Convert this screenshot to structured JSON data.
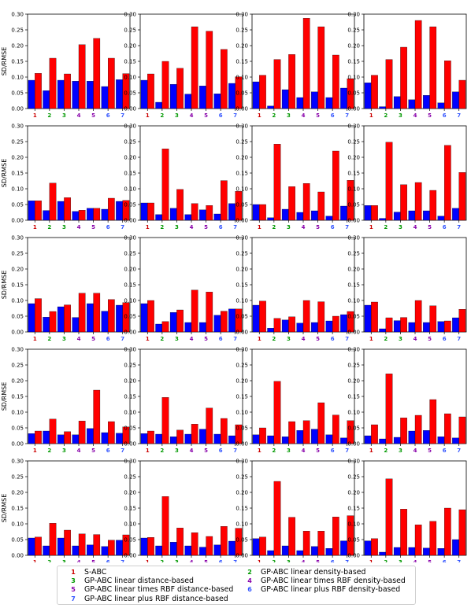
{
  "colors": {
    "red_bar": "#ff0000",
    "blue_bar": "#0000ff",
    "tick_colors": [
      "#cc0000",
      "#009900",
      "#009900",
      "#8800aa",
      "#8800aa",
      "#3355ff",
      "#3355ff"
    ]
  },
  "chart_data": {
    "type": "bar",
    "layout": "grid of 5 rows x 4 columns, grouped bars (blue = SD, red = RMSE)",
    "ylabel": "SD/RMSE",
    "ylim": [
      0,
      0.3
    ],
    "yticks": [
      "0.00",
      "0.05",
      "0.10",
      "0.15",
      "0.20",
      "0.25",
      "0.30"
    ],
    "categories": [
      "1",
      "2",
      "3",
      "4",
      "5",
      "6",
      "7"
    ],
    "grid": false,
    "panels": [
      {
        "row": 1,
        "col": 1,
        "blue": [
          0.09,
          0.057,
          0.09,
          0.087,
          0.087,
          0.07,
          0.092
        ],
        "red": [
          0.112,
          0.16,
          0.11,
          0.203,
          0.223,
          0.16,
          0.111
        ]
      },
      {
        "row": 1,
        "col": 2,
        "blue": [
          0.09,
          0.02,
          0.077,
          0.046,
          0.072,
          0.047,
          0.08
        ],
        "red": [
          0.11,
          0.15,
          0.128,
          0.26,
          0.246,
          0.188,
          0.101
        ]
      },
      {
        "row": 1,
        "col": 3,
        "blue": [
          0.085,
          0.008,
          0.06,
          0.035,
          0.053,
          0.035,
          0.065
        ],
        "red": [
          0.106,
          0.156,
          0.172,
          0.287,
          0.26,
          0.17,
          0.095
        ]
      },
      {
        "row": 1,
        "col": 4,
        "blue": [
          0.082,
          0.006,
          0.038,
          0.028,
          0.042,
          0.018,
          0.053
        ],
        "red": [
          0.106,
          0.156,
          0.195,
          0.28,
          0.26,
          0.152,
          0.09
        ]
      },
      {
        "row": 2,
        "col": 1,
        "blue": [
          0.062,
          0.031,
          0.06,
          0.028,
          0.038,
          0.035,
          0.06
        ],
        "red": [
          0.062,
          0.118,
          0.072,
          0.032,
          0.038,
          0.07,
          0.063
        ]
      },
      {
        "row": 2,
        "col": 2,
        "blue": [
          0.055,
          0.018,
          0.038,
          0.018,
          0.033,
          0.02,
          0.053
        ],
        "red": [
          0.055,
          0.227,
          0.098,
          0.053,
          0.047,
          0.126,
          0.092
        ]
      },
      {
        "row": 2,
        "col": 3,
        "blue": [
          0.05,
          0.008,
          0.035,
          0.025,
          0.03,
          0.013,
          0.045
        ],
        "red": [
          0.05,
          0.242,
          0.107,
          0.117,
          0.09,
          0.22,
          0.127
        ]
      },
      {
        "row": 2,
        "col": 4,
        "blue": [
          0.047,
          0.006,
          0.026,
          0.03,
          0.03,
          0.013,
          0.038
        ],
        "red": [
          0.047,
          0.248,
          0.113,
          0.12,
          0.095,
          0.238,
          0.152
        ]
      },
      {
        "row": 3,
        "col": 1,
        "blue": [
          0.09,
          0.047,
          0.08,
          0.046,
          0.09,
          0.066,
          0.085
        ],
        "red": [
          0.106,
          0.065,
          0.086,
          0.123,
          0.123,
          0.103,
          0.093
        ]
      },
      {
        "row": 3,
        "col": 2,
        "blue": [
          0.09,
          0.025,
          0.062,
          0.03,
          0.03,
          0.053,
          0.073
        ],
        "red": [
          0.1,
          0.033,
          0.07,
          0.133,
          0.127,
          0.066,
          0.073
        ]
      },
      {
        "row": 3,
        "col": 3,
        "blue": [
          0.085,
          0.012,
          0.038,
          0.028,
          0.03,
          0.035,
          0.055
        ],
        "red": [
          0.098,
          0.043,
          0.048,
          0.1,
          0.096,
          0.05,
          0.065
        ]
      },
      {
        "row": 3,
        "col": 4,
        "blue": [
          0.085,
          0.01,
          0.036,
          0.03,
          0.03,
          0.033,
          0.045
        ],
        "red": [
          0.095,
          0.045,
          0.046,
          0.1,
          0.083,
          0.035,
          0.072
        ]
      },
      {
        "row": 4,
        "col": 1,
        "blue": [
          0.032,
          0.04,
          0.028,
          0.028,
          0.048,
          0.035,
          0.033
        ],
        "red": [
          0.04,
          0.078,
          0.038,
          0.072,
          0.17,
          0.07,
          0.053
        ]
      },
      {
        "row": 4,
        "col": 2,
        "blue": [
          0.032,
          0.03,
          0.022,
          0.03,
          0.046,
          0.03,
          0.025
        ],
        "red": [
          0.04,
          0.147,
          0.043,
          0.062,
          0.113,
          0.08,
          0.06
        ]
      },
      {
        "row": 4,
        "col": 3,
        "blue": [
          0.028,
          0.025,
          0.022,
          0.042,
          0.046,
          0.028,
          0.018
        ],
        "red": [
          0.05,
          0.198,
          0.07,
          0.073,
          0.13,
          0.091,
          0.073
        ]
      },
      {
        "row": 4,
        "col": 4,
        "blue": [
          0.025,
          0.015,
          0.02,
          0.04,
          0.042,
          0.022,
          0.018
        ],
        "red": [
          0.06,
          0.222,
          0.082,
          0.09,
          0.14,
          0.095,
          0.085
        ]
      },
      {
        "row": 5,
        "col": 1,
        "blue": [
          0.055,
          0.03,
          0.055,
          0.03,
          0.033,
          0.028,
          0.048
        ],
        "red": [
          0.058,
          0.102,
          0.08,
          0.068,
          0.066,
          0.048,
          0.065
        ]
      },
      {
        "row": 5,
        "col": 2,
        "blue": [
          0.055,
          0.03,
          0.042,
          0.03,
          0.026,
          0.033,
          0.045
        ],
        "red": [
          0.057,
          0.187,
          0.087,
          0.072,
          0.06,
          0.092,
          0.086
        ]
      },
      {
        "row": 5,
        "col": 3,
        "blue": [
          0.053,
          0.015,
          0.03,
          0.015,
          0.028,
          0.022,
          0.046
        ],
        "red": [
          0.058,
          0.235,
          0.121,
          0.077,
          0.077,
          0.122,
          0.126
        ]
      },
      {
        "row": 5,
        "col": 4,
        "blue": [
          0.046,
          0.01,
          0.025,
          0.025,
          0.023,
          0.022,
          0.05
        ],
        "red": [
          0.053,
          0.243,
          0.147,
          0.097,
          0.108,
          0.15,
          0.145
        ]
      }
    ],
    "legend": {
      "placement": "bottom-center",
      "entries": [
        {
          "marker": "1",
          "label": "S-ABC",
          "color": "#cc0000"
        },
        {
          "marker": "2",
          "label": "GP-ABC linear density-based",
          "color": "#009900"
        },
        {
          "marker": "3",
          "label": "GP-ABC linear distance-based",
          "color": "#009900"
        },
        {
          "marker": "4",
          "label": "GP-ABC linear times RBF density-based",
          "color": "#8800aa"
        },
        {
          "marker": "5",
          "label": "GP-ABC linear times RBF distance-based",
          "color": "#8800aa"
        },
        {
          "marker": "6",
          "label": "GP-ABC linear plus RBF density-based",
          "color": "#3355ff"
        },
        {
          "marker": "7",
          "label": "GP-ABC linear plus RBF distance-based",
          "color": "#3355ff"
        }
      ]
    }
  }
}
